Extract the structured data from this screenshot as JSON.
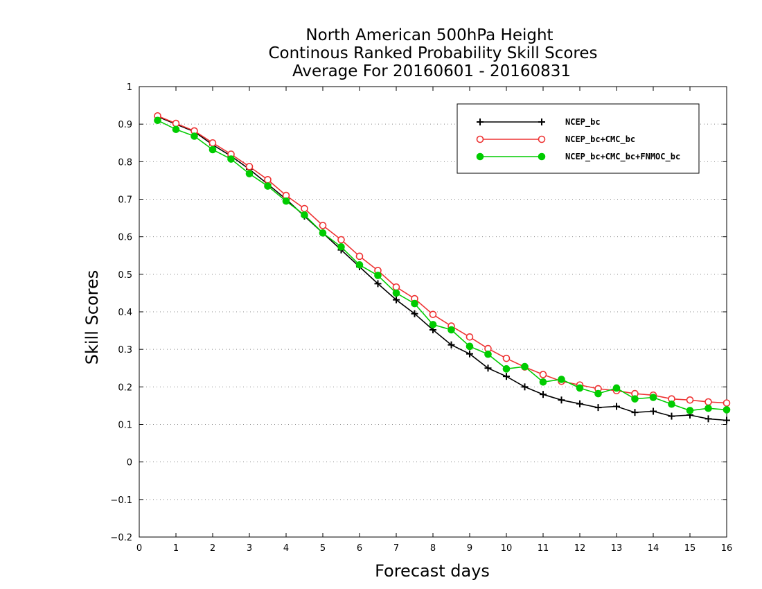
{
  "chart_data": {
    "type": "line",
    "title": [
      "North American 500hPa Height",
      "Continous Ranked Probability Skill Scores",
      "Average For 20160601 - 20160831"
    ],
    "xlabel": "Forecast days",
    "ylabel": "Skill Scores",
    "xlim": [
      0,
      16
    ],
    "ylim": [
      -0.2,
      1
    ],
    "xticks": [
      0,
      1,
      2,
      3,
      4,
      5,
      6,
      7,
      8,
      9,
      10,
      11,
      12,
      13,
      14,
      15,
      16
    ],
    "yticks": [
      -0.2,
      -0.1,
      0,
      0.1,
      0.2,
      0.3,
      0.4,
      0.5,
      0.6,
      0.7,
      0.8,
      0.9,
      1
    ],
    "grid": "horizontal-dotted",
    "legend_position": "top-right",
    "x": [
      0.5,
      1,
      1.5,
      2,
      2.5,
      3,
      3.5,
      4,
      4.5,
      5,
      5.5,
      6,
      6.5,
      7,
      7.5,
      8,
      8.5,
      9,
      9.5,
      10,
      10.5,
      11,
      11.5,
      12,
      12.5,
      13,
      13.5,
      14,
      14.5,
      15,
      15.5,
      16
    ],
    "series": [
      {
        "name": "NCEP_bc",
        "color": "#000000",
        "marker": "plus",
        "values": [
          0.92,
          0.9,
          0.88,
          0.845,
          0.815,
          0.78,
          0.74,
          0.7,
          0.655,
          0.61,
          0.565,
          0.52,
          0.475,
          0.432,
          0.395,
          0.352,
          0.312,
          0.288,
          0.25,
          0.228,
          0.2,
          0.18,
          0.165,
          0.155,
          0.145,
          0.148,
          0.132,
          0.135,
          0.122,
          0.125,
          0.115,
          0.111
        ]
      },
      {
        "name": "NCEP_bc+CMC_bc",
        "color": "#ee3333",
        "marker": "open-circle",
        "values": [
          0.922,
          0.902,
          0.882,
          0.85,
          0.82,
          0.787,
          0.752,
          0.71,
          0.675,
          0.63,
          0.592,
          0.548,
          0.51,
          0.466,
          0.435,
          0.393,
          0.362,
          0.333,
          0.302,
          0.276,
          0.253,
          0.233,
          0.215,
          0.205,
          0.195,
          0.19,
          0.182,
          0.178,
          0.168,
          0.165,
          0.16,
          0.157
        ]
      },
      {
        "name": "NCEP_bc+CMC_bc+FNMOC_bc",
        "color": "#00cc00",
        "marker": "filled-circle",
        "values": [
          0.91,
          0.886,
          0.868,
          0.832,
          0.807,
          0.768,
          0.735,
          0.695,
          0.658,
          0.61,
          0.573,
          0.525,
          0.497,
          0.45,
          0.422,
          0.366,
          0.352,
          0.308,
          0.287,
          0.248,
          0.254,
          0.213,
          0.22,
          0.197,
          0.182,
          0.197,
          0.168,
          0.172,
          0.154,
          0.137,
          0.143,
          0.139
        ]
      }
    ]
  }
}
